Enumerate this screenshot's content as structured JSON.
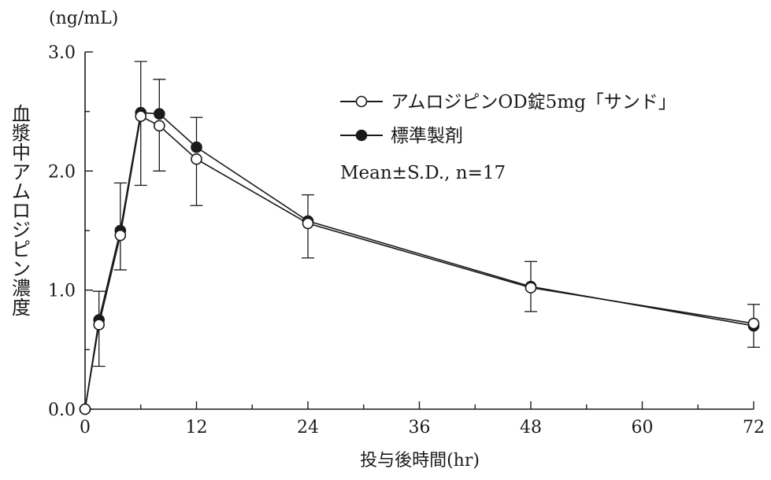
{
  "chart_data": {
    "type": "line",
    "y_unit_label": "(ng/mL)",
    "ylabel": "血漿中アムロジピン濃度",
    "xlabel": "投与後時間(hr)",
    "xlim": [
      0,
      72
    ],
    "ylim": [
      0,
      3.0
    ],
    "x_ticks": [
      0,
      12,
      24,
      36,
      48,
      60,
      72
    ],
    "x_tick_labels": [
      "0",
      "12",
      "24",
      "36",
      "48",
      "60",
      "72"
    ],
    "y_ticks": [
      0,
      1,
      2,
      3
    ],
    "y_tick_labels": [
      "0.0",
      "1.0",
      "2.0",
      "3.0"
    ],
    "annotation": "Mean±S.D., n=17",
    "legend_position": "upper-right",
    "grid": false,
    "series": [
      {
        "name": "アムロジピンOD錠5mg「サンド」",
        "marker": "open-circle",
        "x": [
          0,
          1.5,
          3.8,
          6,
          8,
          12,
          24,
          48,
          72
        ],
        "y": [
          0,
          0.71,
          1.46,
          2.46,
          2.38,
          2.1,
          1.56,
          1.02,
          0.72
        ],
        "sd_lower": [
          null,
          null,
          1.17,
          1.88,
          2.0,
          1.71,
          1.27,
          0.82,
          null
        ],
        "sd_upper": [
          null,
          null,
          null,
          null,
          null,
          null,
          null,
          null,
          0.88
        ]
      },
      {
        "name": "標準製剤",
        "marker": "filled-circle",
        "x": [
          0,
          1.5,
          3.8,
          6,
          8,
          12,
          24,
          48,
          72
        ],
        "y": [
          0,
          0.75,
          1.5,
          2.49,
          2.48,
          2.2,
          1.58,
          1.03,
          0.7
        ],
        "sd_lower": [
          null,
          0.36,
          null,
          null,
          null,
          null,
          null,
          null,
          0.52
        ],
        "sd_upper": [
          null,
          0.99,
          1.9,
          2.92,
          2.77,
          2.45,
          1.8,
          1.24,
          null
        ]
      }
    ]
  }
}
